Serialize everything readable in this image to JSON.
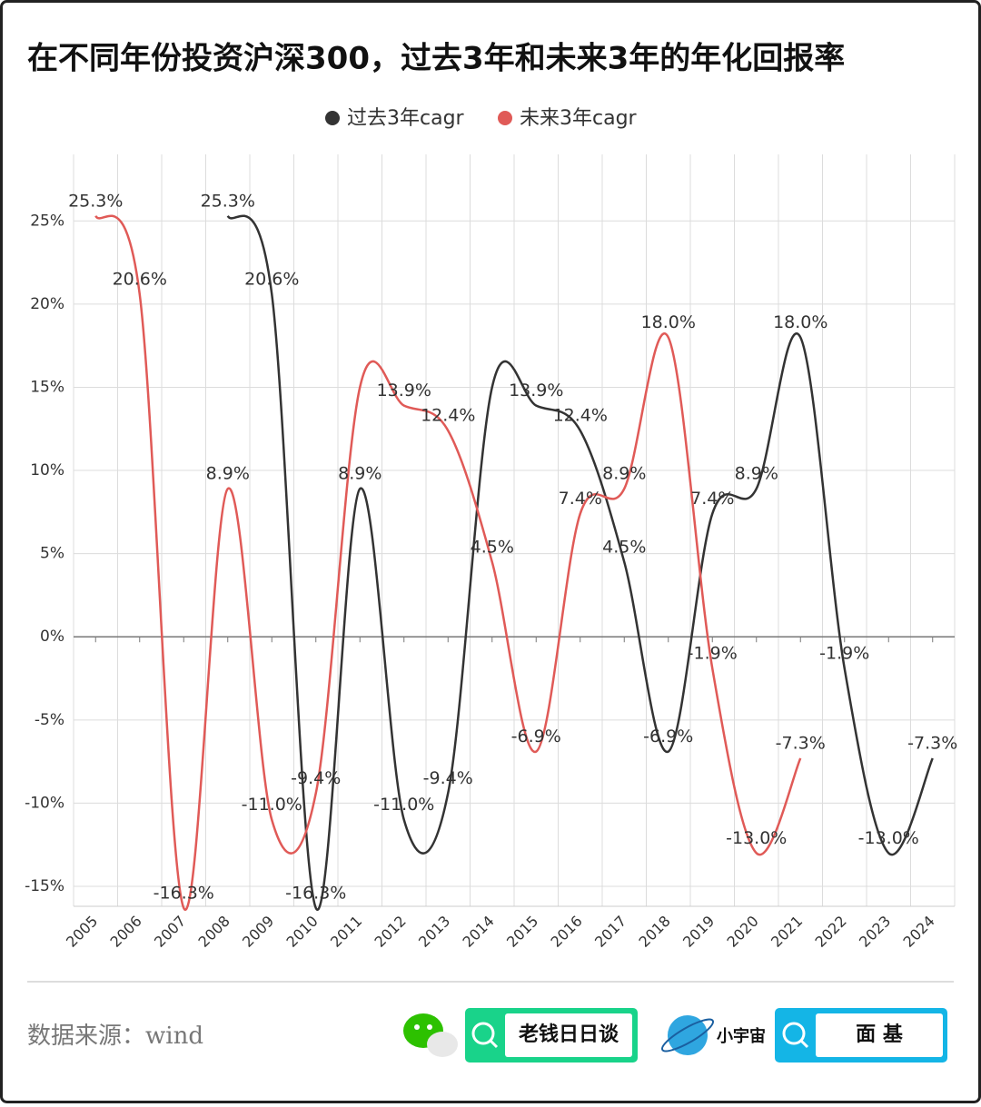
{
  "chart_data": {
    "type": "line",
    "title": "在不同年份投资沪深300，过去3年和未来3年的年化回报率",
    "categories": [
      "2005",
      "2006",
      "2007",
      "2008",
      "2009",
      "2010",
      "2011",
      "2012",
      "2013",
      "2014",
      "2015",
      "2016",
      "2017",
      "2018",
      "2019",
      "2020",
      "2021",
      "2022",
      "2023",
      "2024"
    ],
    "series": [
      {
        "name": "过去3年cagr",
        "color": "#333333",
        "values": [
          null,
          null,
          null,
          25.3,
          20.6,
          -16.3,
          8.9,
          -11.0,
          -9.4,
          15.0,
          13.9,
          12.4,
          4.5,
          -6.9,
          7.4,
          8.9,
          18.0,
          -1.9,
          -13.0,
          -7.3
        ],
        "value_labels": [
          null,
          null,
          null,
          "25.3%",
          "20.6%",
          "-16.3%",
          "8.9%",
          "-11.0%",
          "-9.4%",
          null,
          "13.9%",
          "12.4%",
          "4.5%",
          "-6.9%",
          "7.4%",
          "8.9%",
          "18.0%",
          "-1.9%",
          "-13.0%",
          "-7.3%"
        ]
      },
      {
        "name": "未来3年cagr",
        "color": "#e05a57",
        "values": [
          25.3,
          20.6,
          -16.3,
          8.9,
          -11.0,
          -9.4,
          15.0,
          13.9,
          12.4,
          4.5,
          -6.9,
          7.4,
          8.9,
          18.0,
          -1.9,
          -13.0,
          -7.3,
          null,
          null,
          null
        ],
        "value_labels": [
          "25.3%",
          "20.6%",
          "-16.3%",
          "8.9%",
          "-11.0%",
          "-9.4%",
          null,
          "13.9%",
          "12.4%",
          "4.5%",
          "-6.9%",
          "7.4%",
          "8.9%",
          "18.0%",
          "-1.9%",
          "-13.0%",
          "-7.3%",
          null,
          null,
          null
        ]
      }
    ],
    "ylim": [
      -16.2,
      29
    ],
    "yticks": [
      {
        "value": -15,
        "label": "-15%"
      },
      {
        "value": -10,
        "label": "-10%"
      },
      {
        "value": -5,
        "label": "-5%"
      },
      {
        "value": 0,
        "label": "0%"
      },
      {
        "value": 5,
        "label": "5%"
      },
      {
        "value": 10,
        "label": "10%"
      },
      {
        "value": 15,
        "label": "15%"
      },
      {
        "value": 20,
        "label": "20%"
      },
      {
        "value": 25,
        "label": "25%"
      }
    ],
    "grid": true,
    "smooth": true,
    "legend": "top"
  },
  "footer": {
    "source": "数据来源：wind",
    "brands": [
      "老钱日日谈",
      "小宇宙",
      "面 基"
    ]
  }
}
